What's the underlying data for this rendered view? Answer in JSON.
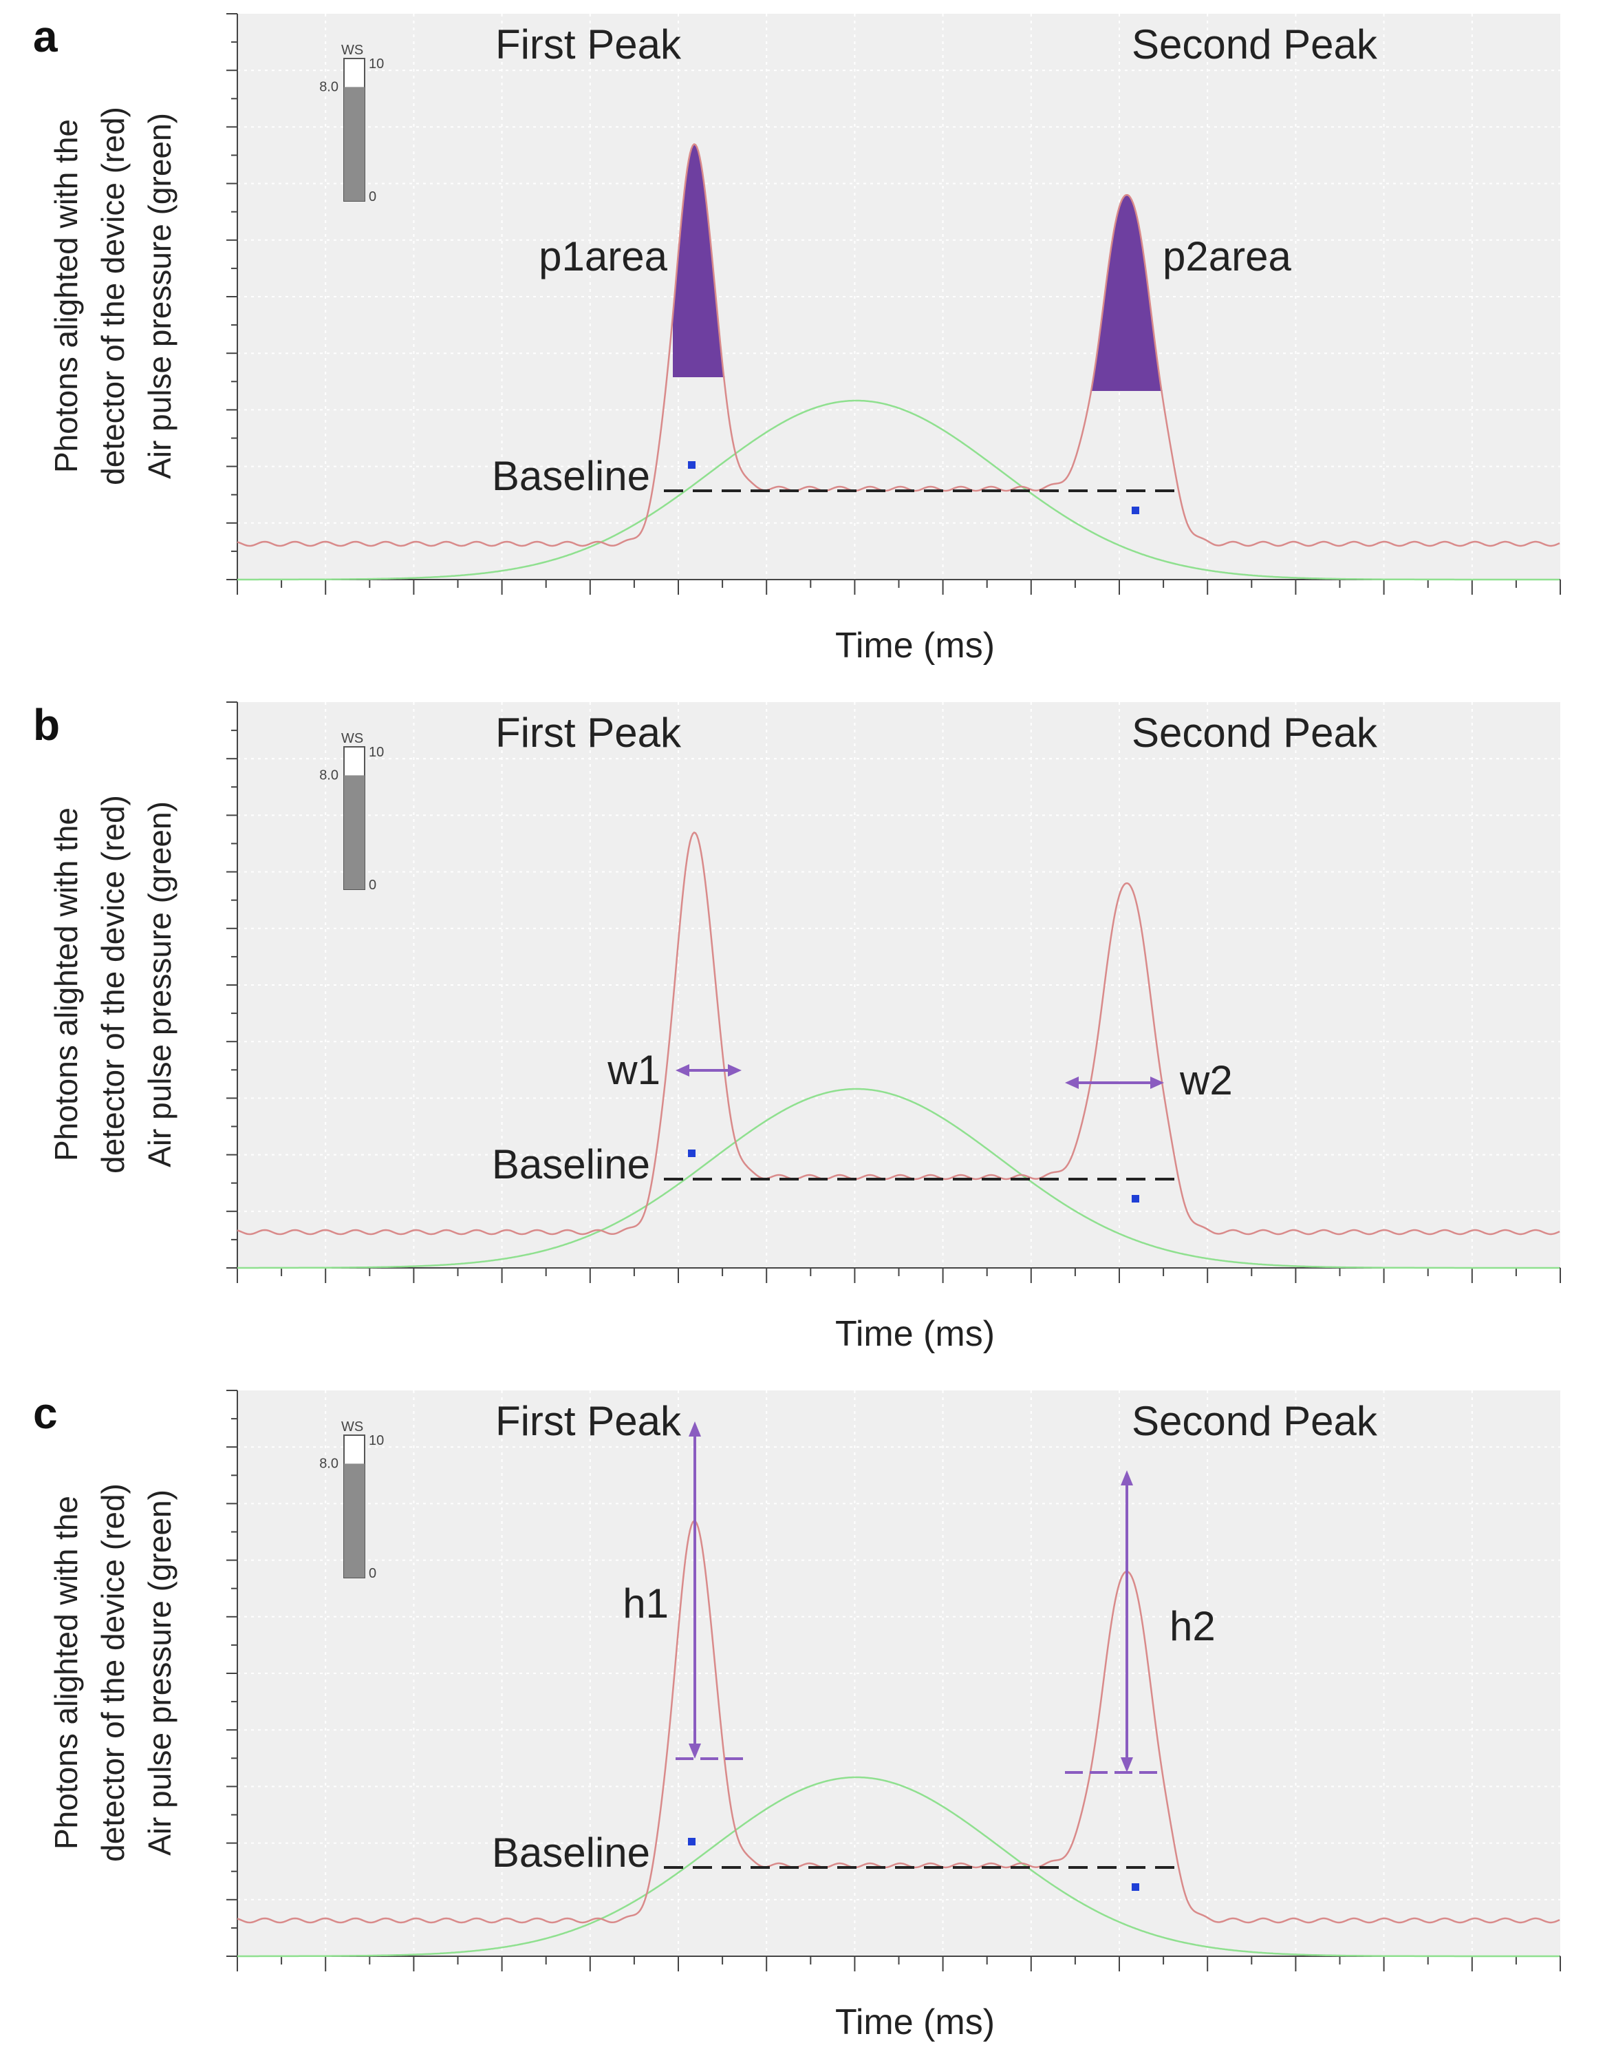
{
  "chart_data": [
    {
      "type": "line",
      "panel_label": "a",
      "ylabel_lines": [
        "Photons alighted with the",
        "detector of the device (red)",
        "Air pulse pressure (green)"
      ],
      "xlabel": "Time (ms)",
      "peak_labels": [
        "First Peak",
        "Second Peak"
      ],
      "baseline_label": "Baseline",
      "annotation_labels": [
        "p1area",
        "p2area"
      ],
      "annotation_kind": "area",
      "gauge": {
        "title": "WS",
        "max_label": "10",
        "value_label": "8.0",
        "min_label": "0",
        "value": 8.0,
        "max": 10
      },
      "series": [
        {
          "role": "red",
          "color": "#d98a8a"
        },
        {
          "role": "green",
          "color": "#8fe08f"
        }
      ],
      "colors": {
        "plot_bg": "#efefef",
        "grid": "#ffffff",
        "annotation": "#6e3fa0",
        "marker": "#1f3fd6",
        "baseline": "#222222"
      }
    },
    {
      "type": "line",
      "panel_label": "b",
      "ylabel_lines": [
        "Photons alighted with the",
        "detector of the device (red)",
        "Air pulse pressure (green)"
      ],
      "xlabel": "Time (ms)",
      "peak_labels": [
        "First Peak",
        "Second Peak"
      ],
      "baseline_label": "Baseline",
      "annotation_labels": [
        "w1",
        "w2"
      ],
      "annotation_kind": "width",
      "gauge": {
        "title": "WS",
        "max_label": "10",
        "value_label": "8.0",
        "min_label": "0",
        "value": 8.0,
        "max": 10
      },
      "series": [
        {
          "role": "red",
          "color": "#d98a8a"
        },
        {
          "role": "green",
          "color": "#8fe08f"
        }
      ],
      "colors": {
        "plot_bg": "#efefef",
        "grid": "#ffffff",
        "annotation": "#8a5cc0",
        "marker": "#1f3fd6",
        "baseline": "#222222"
      }
    },
    {
      "type": "line",
      "panel_label": "c",
      "ylabel_lines": [
        "Photons alighted with the",
        "detector of the device (red)",
        "Air pulse pressure (green)"
      ],
      "xlabel": "Time (ms)",
      "peak_labels": [
        "First Peak",
        "Second Peak"
      ],
      "baseline_label": "Baseline",
      "annotation_labels": [
        "h1",
        "h2"
      ],
      "annotation_kind": "height",
      "gauge": {
        "title": "WS",
        "max_label": "10",
        "value_label": "8.0",
        "min_label": "0",
        "value": 8.0,
        "max": 10
      },
      "series": [
        {
          "role": "red",
          "color": "#d98a8a"
        },
        {
          "role": "green",
          "color": "#8fe08f"
        }
      ],
      "colors": {
        "plot_bg": "#efefef",
        "grid": "#ffffff",
        "annotation": "#8a5cc0",
        "marker": "#1f3fd6",
        "baseline": "#222222"
      }
    }
  ]
}
